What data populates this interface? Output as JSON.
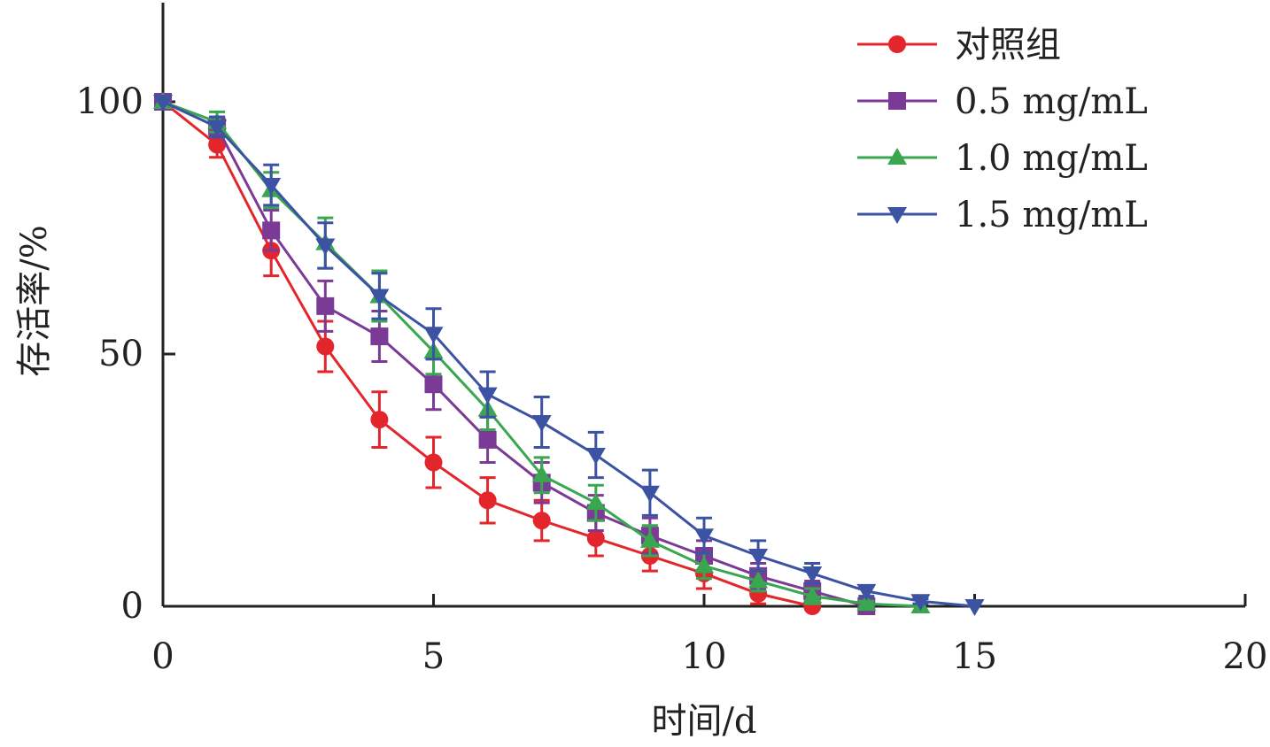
{
  "chart_data": {
    "type": "line",
    "title": "",
    "xlabel": "时间/d",
    "ylabel": "存活率/%",
    "xlim": [
      0,
      20
    ],
    "ylim": [
      0,
      100
    ],
    "xticks": [
      0,
      5,
      10,
      15,
      20
    ],
    "yticks": [
      0,
      50,
      100
    ],
    "grid": false,
    "legend_position": "top-right",
    "series": [
      {
        "name": "对照组",
        "color": "#e3262b",
        "marker": "circle",
        "x": [
          0,
          1,
          2,
          3,
          4,
          5,
          6,
          7,
          8,
          9,
          10,
          11,
          12
        ],
        "y": [
          100,
          91.5,
          70.5,
          51.5,
          37,
          28.5,
          21,
          17,
          13.5,
          10,
          6.5,
          2.5,
          0
        ],
        "err": [
          0,
          2.5,
          5,
          5,
          5.5,
          5,
          4.5,
          4,
          3.5,
          3,
          3,
          2,
          0
        ]
      },
      {
        "name": "0.5 mg/mL",
        "color": "#7b3a96",
        "marker": "square",
        "x": [
          0,
          1,
          2,
          3,
          4,
          5,
          6,
          7,
          8,
          9,
          10,
          11,
          12,
          13
        ],
        "y": [
          100,
          95,
          74.5,
          59.5,
          53.5,
          44,
          33,
          24.5,
          18.5,
          14,
          10,
          6,
          3,
          0
        ],
        "err": [
          0,
          2,
          4,
          5,
          5,
          5,
          4.5,
          4,
          3.5,
          3.5,
          3,
          2.5,
          2,
          0
        ]
      },
      {
        "name": "1.0 mg/mL",
        "color": "#3aa64f",
        "marker": "triangle-up",
        "x": [
          0,
          1,
          2,
          3,
          4,
          5,
          6,
          7,
          8,
          9,
          10,
          11,
          12,
          13,
          14
        ],
        "y": [
          100,
          96,
          82.5,
          72,
          61.5,
          50.5,
          39,
          26,
          20.5,
          13,
          8,
          5,
          2,
          0.5,
          0
        ],
        "err": [
          0,
          2,
          3.5,
          5,
          5,
          4.5,
          4,
          3.5,
          3.5,
          3,
          2.5,
          2,
          1.5,
          0.5,
          0
        ]
      },
      {
        "name": "1.5 mg/mL",
        "color": "#3c53a4",
        "marker": "triangle-down",
        "x": [
          0,
          1,
          2,
          3,
          4,
          5,
          6,
          7,
          8,
          9,
          10,
          11,
          12,
          13,
          14,
          15
        ],
        "y": [
          100,
          95,
          83.5,
          71.5,
          61.5,
          54,
          42,
          36.5,
          30,
          22.5,
          14,
          10,
          6.5,
          3,
          1,
          0
        ],
        "err": [
          0,
          2,
          4,
          4.5,
          4.5,
          5,
          4.5,
          5,
          4.5,
          4.5,
          3.5,
          3,
          2,
          1,
          0.5,
          0
        ]
      }
    ]
  }
}
